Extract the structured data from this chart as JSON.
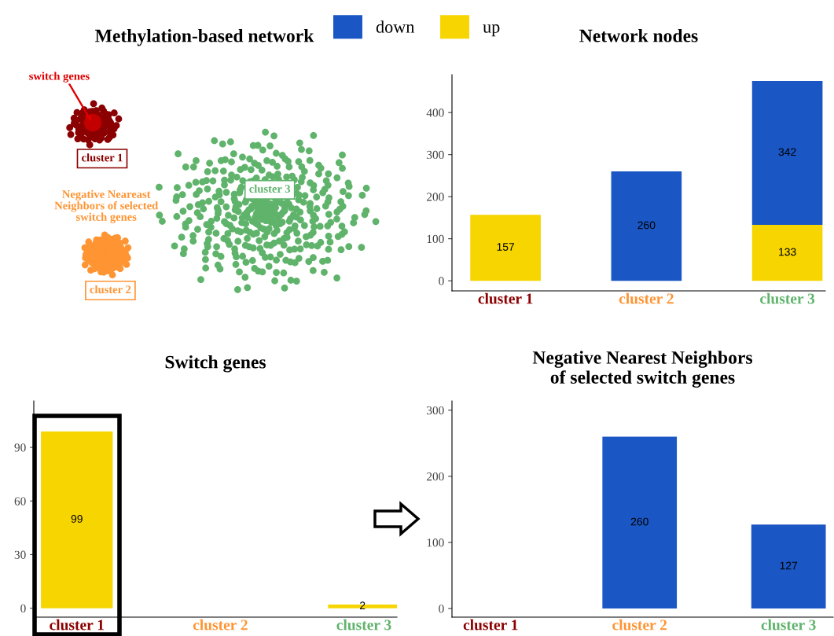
{
  "chart_data": [
    {
      "type": "other",
      "title": "Methylation-based network",
      "annotations": [
        "switch genes",
        "cluster 1",
        "Negative Neareast\nNeighbors of selected\nswitch genes",
        "cluster 2",
        "cluster 3"
      ]
    },
    {
      "type": "bar",
      "title": "Network nodes",
      "categories": [
        "cluster 1",
        "cluster 2",
        "cluster 3"
      ],
      "stacked": true,
      "legend": "top",
      "series": [
        {
          "name": "up",
          "color": "#f7d500",
          "values": [
            157,
            null,
            133
          ]
        },
        {
          "name": "down",
          "color": "#1a56c4",
          "values": [
            null,
            260,
            342
          ]
        }
      ],
      "ylim": [
        -24,
        490
      ],
      "yticks": [
        0,
        100,
        200,
        300,
        400
      ],
      "data_labels": true
    },
    {
      "type": "bar",
      "title": "Switch genes",
      "categories": [
        "cluster 1",
        "cluster 2",
        "cluster 3"
      ],
      "series": [
        {
          "color": "#f7d500",
          "values": [
            99,
            null,
            2
          ]
        }
      ],
      "ylim": [
        -5,
        116
      ],
      "yticks": [
        0,
        30,
        60,
        90
      ],
      "data_labels": true
    },
    {
      "type": "bar",
      "title": "Negative Nearest Neighbors\nof selected switch genes",
      "categories": [
        "cluster 1",
        "cluster 2",
        "cluster 3"
      ],
      "series": [
        {
          "color": "#1a56c4",
          "values": [
            null,
            260,
            127
          ]
        }
      ],
      "ylim": [
        -13,
        314
      ],
      "yticks": [
        0,
        100,
        200,
        300
      ],
      "data_labels": true
    }
  ]
}
